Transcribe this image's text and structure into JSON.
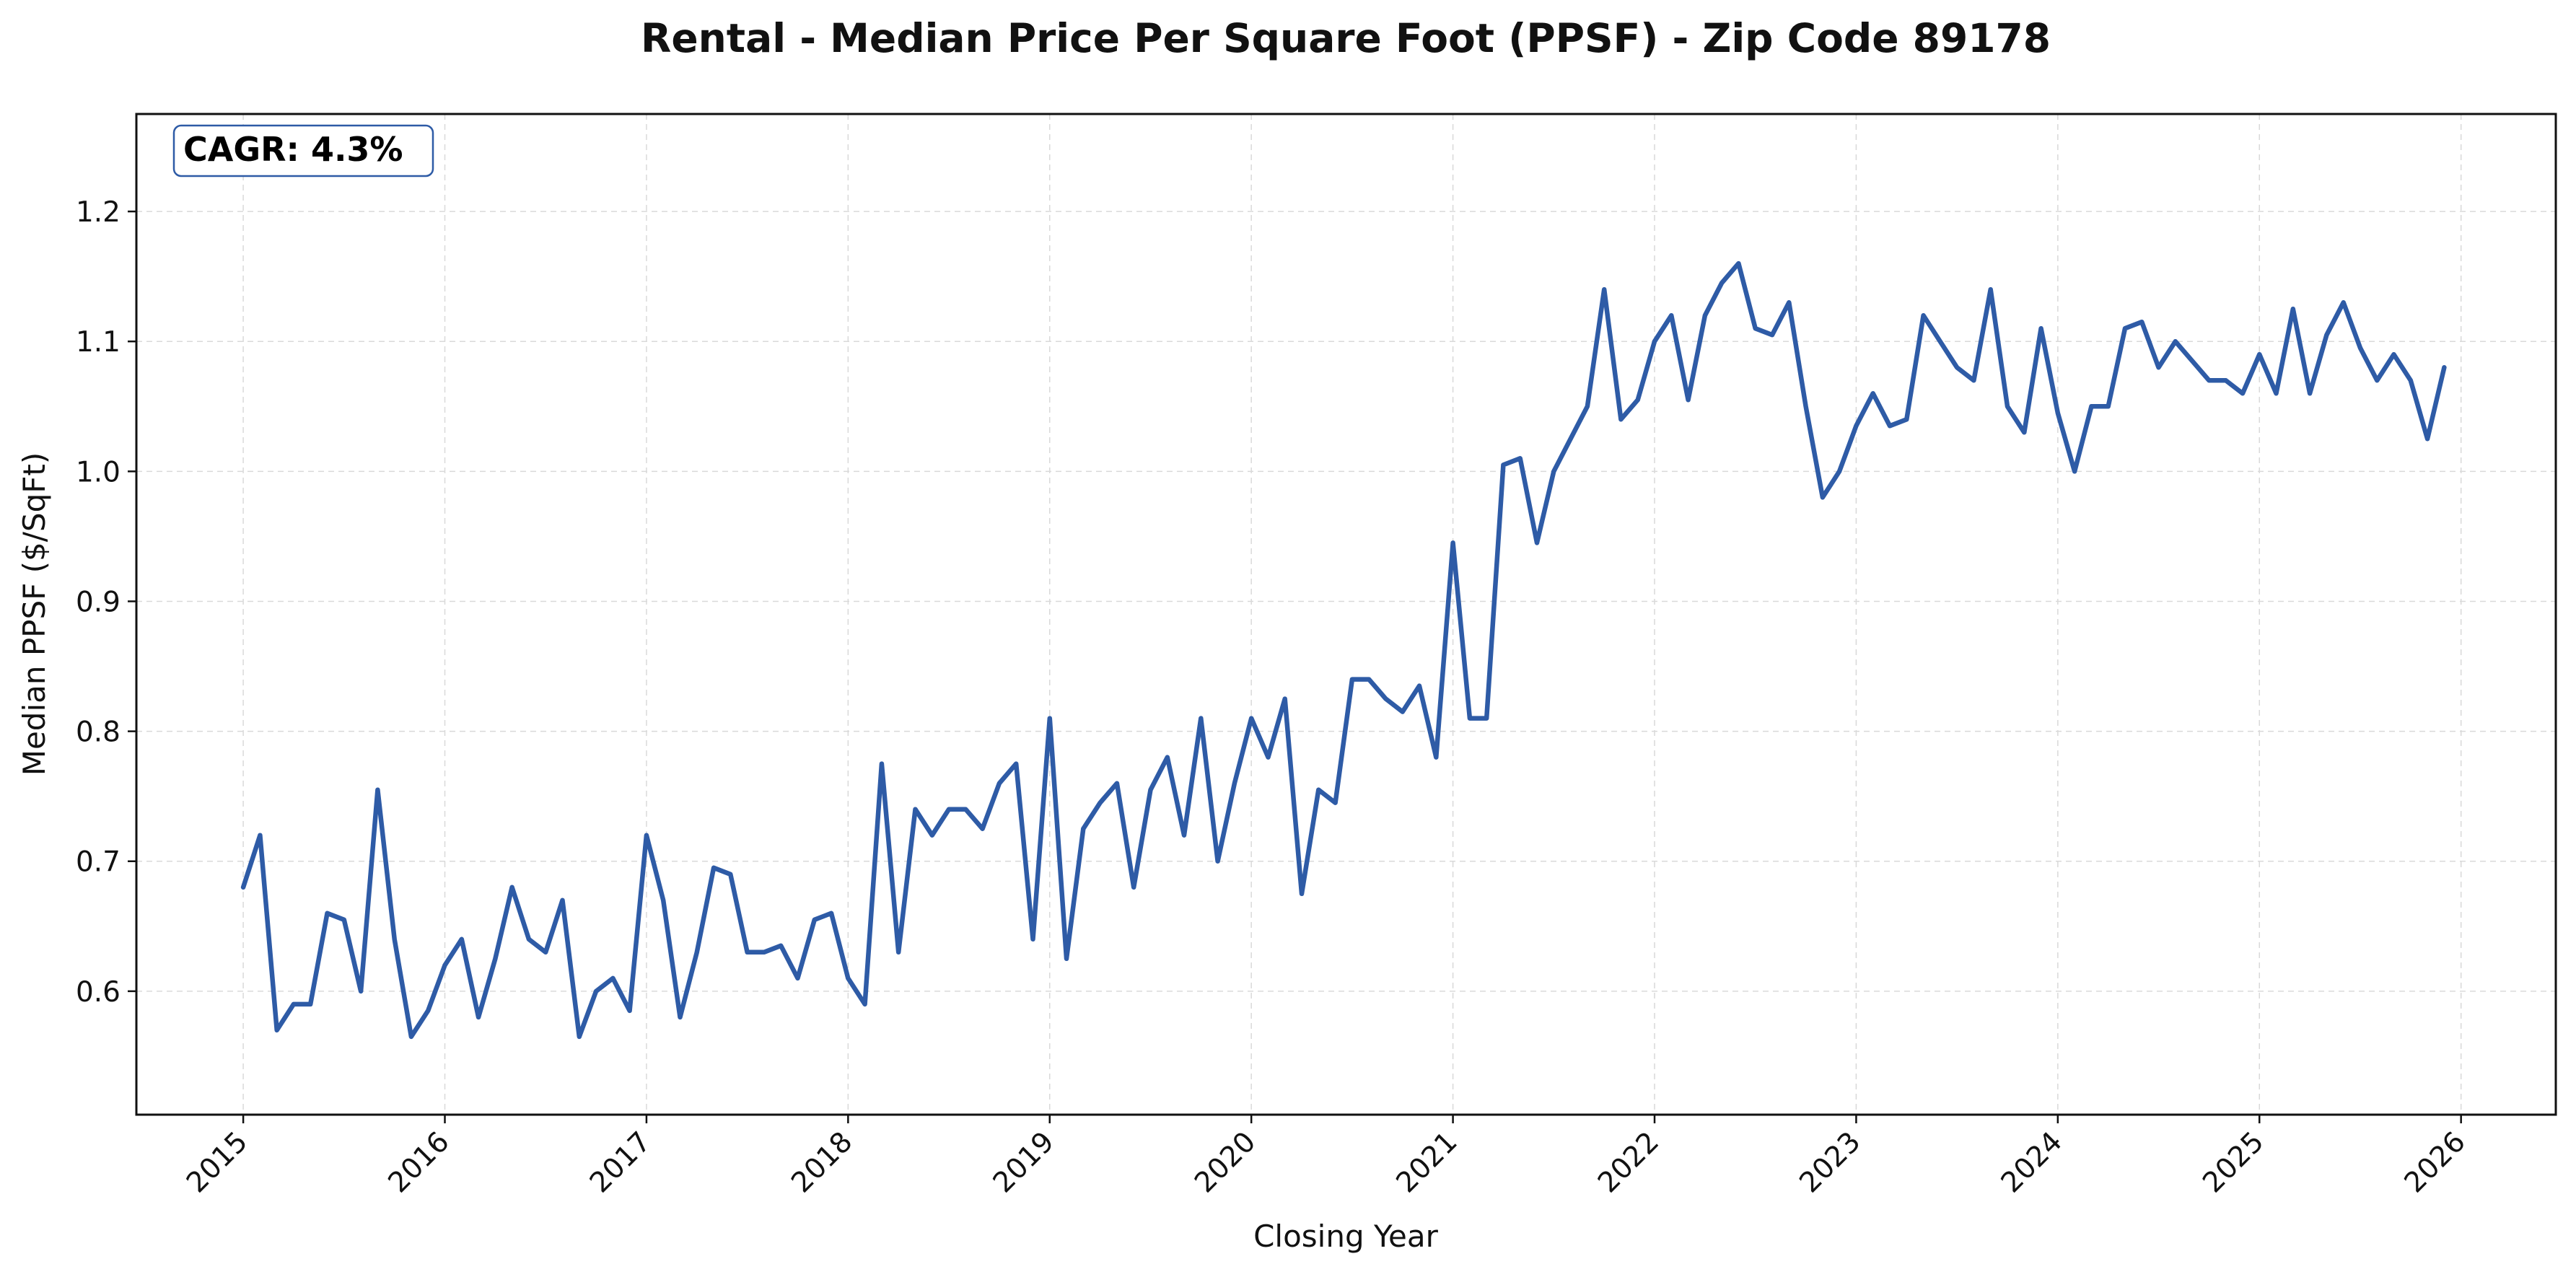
{
  "chart_data": {
    "type": "line",
    "title": "Rental - Median Price Per Square Foot (PPSF) - Zip Code 89178",
    "xlabel": "Closing Year",
    "ylabel": "Median PPSF ($/SqFt)",
    "xlim": [
      2014.47,
      2026.47
    ],
    "ylim": [
      0.505,
      1.275
    ],
    "x_ticks": [
      "2015",
      "2016",
      "2017",
      "2018",
      "2019",
      "2020",
      "2021",
      "2022",
      "2023",
      "2024",
      "2025",
      "2026"
    ],
    "x_tick_values": [
      2015,
      2016,
      2017,
      2018,
      2019,
      2020,
      2021,
      2022,
      2023,
      2024,
      2025,
      2026
    ],
    "y_ticks": [
      "0.6",
      "0.7",
      "0.8",
      "0.9",
      "1.0",
      "1.1",
      "1.2"
    ],
    "y_tick_values": [
      0.6,
      0.7,
      0.8,
      0.9,
      1.0,
      1.1,
      1.2
    ],
    "grid": true,
    "annotation": "CAGR: 4.3%",
    "line_color": "#2e5ba6",
    "series": [
      {
        "name": "Median PPSF",
        "start": 2015.0,
        "step_months": 1,
        "values": [
          0.68,
          0.72,
          0.57,
          0.59,
          0.59,
          0.66,
          0.655,
          0.6,
          0.755,
          0.64,
          0.565,
          0.585,
          0.62,
          0.64,
          0.58,
          0.625,
          0.68,
          0.64,
          0.63,
          0.67,
          0.565,
          0.6,
          0.61,
          0.585,
          0.72,
          0.67,
          0.58,
          0.63,
          0.695,
          0.69,
          0.63,
          0.63,
          0.635,
          0.61,
          0.655,
          0.66,
          0.61,
          0.59,
          0.775,
          0.63,
          0.74,
          0.72,
          0.74,
          0.74,
          0.725,
          0.76,
          0.775,
          0.64,
          0.81,
          0.625,
          0.725,
          0.745,
          0.76,
          0.68,
          0.755,
          0.78,
          0.72,
          0.81,
          0.7,
          0.76,
          0.81,
          0.78,
          0.825,
          0.675,
          0.755,
          0.745,
          0.84,
          0.84,
          0.825,
          0.815,
          0.835,
          0.78,
          0.945,
          0.81,
          0.81,
          1.005,
          1.01,
          0.945,
          1.0,
          1.025,
          1.05,
          1.14,
          1.04,
          1.055,
          1.1,
          1.12,
          1.055,
          1.12,
          1.145,
          1.16,
          1.11,
          1.105,
          1.13,
          1.05,
          0.98,
          1.0,
          1.035,
          1.06,
          1.035,
          1.04,
          1.12,
          1.1,
          1.08,
          1.07,
          1.14,
          1.05,
          1.03,
          1.11,
          1.045,
          1.0,
          1.05,
          1.05,
          1.11,
          1.115,
          1.08,
          1.1,
          1.085,
          1.07,
          1.07,
          1.06,
          1.09,
          1.06,
          1.125,
          1.06,
          1.105,
          1.13,
          1.095,
          1.07,
          1.09,
          1.07,
          1.025,
          1.08
        ]
      }
    ]
  }
}
